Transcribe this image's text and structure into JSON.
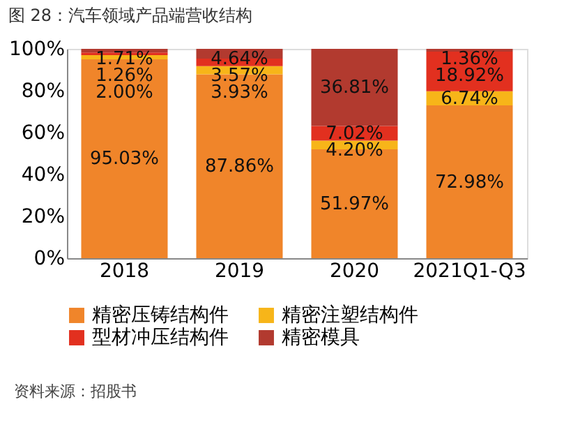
{
  "chart_data": {
    "type": "bar",
    "title": "图 28：汽车领域产品端营收结构",
    "stacked": true,
    "legend": "bottom",
    "grid": false,
    "categories": [
      "2018",
      "2019",
      "2020",
      "2021Q1-Q3"
    ],
    "series": [
      {
        "name": "精密压铸结构件",
        "color": "#f0852a",
        "values": [
          95.03,
          87.86,
          51.97,
          72.98
        ],
        "value_labels": [
          "95.03%",
          "87.86%",
          "51.97%",
          "72.98%"
        ]
      },
      {
        "name": "精密注塑结构件",
        "color": "#f7b519",
        "values": [
          2.0,
          3.93,
          4.2,
          6.74
        ],
        "value_labels": [
          "2.00%",
          "3.93%",
          "4.20%",
          "6.74%"
        ]
      },
      {
        "name": "型材冲压结构件",
        "color": "#e2301f",
        "values": [
          1.26,
          3.57,
          7.02,
          18.92
        ],
        "value_labels": [
          "1.26%",
          "3.57%",
          "7.02%",
          "18.92%"
        ]
      },
      {
        "name": "精密模具",
        "color": "#b23a2f",
        "values": [
          1.71,
          4.64,
          36.81,
          1.36
        ],
        "value_labels": [
          "1.71%",
          "4.64%",
          "36.81%",
          "1.36%"
        ]
      }
    ],
    "ylim": [
      0,
      100
    ],
    "yticks": [
      {
        "value": 0,
        "label": "0%"
      },
      {
        "value": 20,
        "label": "20%"
      },
      {
        "value": 40,
        "label": "40%"
      },
      {
        "value": 60,
        "label": "60%"
      },
      {
        "value": 80,
        "label": "80%"
      },
      {
        "value": 100,
        "label": "100%"
      }
    ],
    "annotations": [
      "资料来源：招股书"
    ]
  }
}
